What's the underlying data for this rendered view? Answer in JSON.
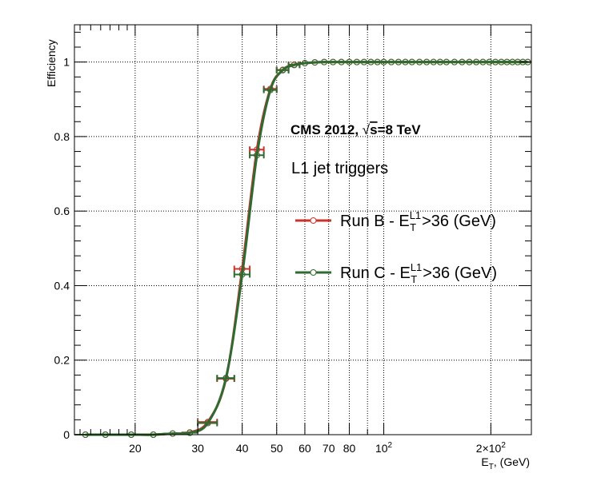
{
  "chart_data": {
    "type": "line",
    "title": "CMS 2012, √s=8 TeV",
    "title_parts": {
      "prefix": "CMS 2012, ",
      "sqrt": "√",
      "radicand": "s",
      "suffix": "=8 TeV"
    },
    "subtitle": "L1 jet triggers",
    "ylabel": "Efficiency",
    "xlabel": {
      "main": "E",
      "sub": "T",
      "rest": ", (GeV)"
    },
    "x_scale": "log",
    "xlim": [
      13.5,
      260
    ],
    "ylim": [
      0,
      1.1
    ],
    "grid": true,
    "x_tick_labels": [
      {
        "value": 20,
        "label": "20"
      },
      {
        "value": 30,
        "label": "30"
      },
      {
        "value": 40,
        "label": "40"
      },
      {
        "value": 50,
        "label": "50"
      },
      {
        "value": 60,
        "label": "60"
      },
      {
        "value": 70,
        "label": "70"
      },
      {
        "value": 80,
        "label": "80"
      },
      {
        "value": 100,
        "label": "10",
        "sup": "2"
      },
      {
        "value": 200,
        "label": "2×10",
        "sup": "2"
      }
    ],
    "y_tick_labels": [
      {
        "value": 0,
        "label": "0"
      },
      {
        "value": 0.2,
        "label": "0.2"
      },
      {
        "value": 0.4,
        "label": "0.4"
      },
      {
        "value": 0.6,
        "label": "0.6"
      },
      {
        "value": 0.8,
        "label": "0.8"
      },
      {
        "value": 1,
        "label": "1"
      }
    ],
    "legend_placement": "right",
    "series": [
      {
        "name": "Run B",
        "legend": {
          "pre": "Run B - E",
          "sub": "T",
          "sup": "L1",
          "post": ">36 (GeV)"
        },
        "color": "#c8342c",
        "x": [
          14.5,
          16.5,
          19.5,
          22.5,
          25.5,
          28.5,
          32,
          36,
          40,
          44,
          48,
          52,
          56,
          60,
          64,
          68,
          72,
          76,
          80,
          84,
          88,
          92,
          96,
          100,
          105,
          110,
          115,
          120,
          126,
          132,
          138,
          144,
          150,
          158,
          166,
          174,
          182,
          190,
          198,
          206,
          214,
          222,
          230,
          238,
          246,
          254
        ],
        "x_low": [
          13.5,
          15.5,
          18,
          21,
          24,
          27,
          30,
          34,
          38,
          42,
          46,
          50,
          54,
          58,
          62,
          66,
          70,
          74,
          78,
          82,
          86,
          90,
          94,
          98,
          102,
          107,
          112,
          117,
          123,
          129,
          135,
          141,
          147,
          154,
          162,
          170,
          178,
          186,
          194,
          202,
          210,
          218,
          226,
          234,
          242,
          250
        ],
        "x_high": [
          15.5,
          18,
          21,
          24,
          27,
          30,
          34,
          38,
          42,
          46,
          50,
          54,
          58,
          62,
          66,
          70,
          74,
          78,
          82,
          86,
          90,
          94,
          98,
          102,
          107,
          112,
          117,
          123,
          129,
          135,
          141,
          147,
          154,
          162,
          170,
          178,
          186,
          194,
          202,
          210,
          218,
          226,
          234,
          242,
          250,
          258
        ],
        "y": [
          0.0,
          0.0,
          0.0,
          0.0,
          0.003,
          0.006,
          0.034,
          0.15,
          0.445,
          0.765,
          0.928,
          0.979,
          0.993,
          0.997,
          0.999,
          1,
          1,
          1,
          1,
          1,
          1,
          1,
          1,
          1,
          1,
          1,
          1,
          1,
          1,
          1,
          1,
          1,
          1,
          1,
          1,
          1,
          1,
          1,
          1,
          1,
          1,
          1,
          1,
          1,
          1,
          1
        ]
      },
      {
        "name": "Run C",
        "legend": {
          "pre": "Run C - E",
          "sub": "T",
          "sup": "L1",
          "post": ">36 (GeV)"
        },
        "color": "#2f6b30",
        "x": [
          14.5,
          16.5,
          19.5,
          22.5,
          25.5,
          28.5,
          32,
          36,
          40,
          44,
          48,
          52,
          56,
          60,
          64,
          68,
          72,
          76,
          80,
          84,
          88,
          92,
          96,
          100,
          105,
          110,
          115,
          120,
          126,
          132,
          138,
          144,
          150,
          158,
          166,
          174,
          182,
          190,
          198,
          206,
          214,
          222,
          230,
          238,
          246,
          254
        ],
        "x_low": [
          13.5,
          15.5,
          18,
          21,
          24,
          27,
          30,
          34,
          38,
          42,
          46,
          50,
          54,
          58,
          62,
          66,
          70,
          74,
          78,
          82,
          86,
          90,
          94,
          98,
          102,
          107,
          112,
          117,
          123,
          129,
          135,
          141,
          147,
          154,
          162,
          170,
          178,
          186,
          194,
          202,
          210,
          218,
          226,
          234,
          242,
          250
        ],
        "x_high": [
          15.5,
          18,
          21,
          24,
          27,
          30,
          34,
          38,
          42,
          46,
          50,
          54,
          58,
          62,
          66,
          70,
          74,
          78,
          82,
          86,
          90,
          94,
          98,
          102,
          107,
          112,
          117,
          123,
          129,
          135,
          141,
          147,
          154,
          162,
          170,
          178,
          186,
          194,
          202,
          210,
          218,
          226,
          234,
          242,
          250,
          258
        ],
        "y": [
          0.0,
          0.0,
          0.0,
          0.0,
          0.003,
          0.005,
          0.031,
          0.152,
          0.43,
          0.75,
          0.925,
          0.978,
          0.992,
          0.997,
          0.999,
          1,
          1,
          1,
          1,
          1,
          1,
          1,
          1,
          1,
          1,
          1,
          1,
          1,
          1,
          1,
          1,
          1,
          1,
          1,
          1,
          1,
          1,
          1,
          1,
          1,
          1,
          1,
          1,
          1,
          1,
          1
        ]
      }
    ]
  }
}
